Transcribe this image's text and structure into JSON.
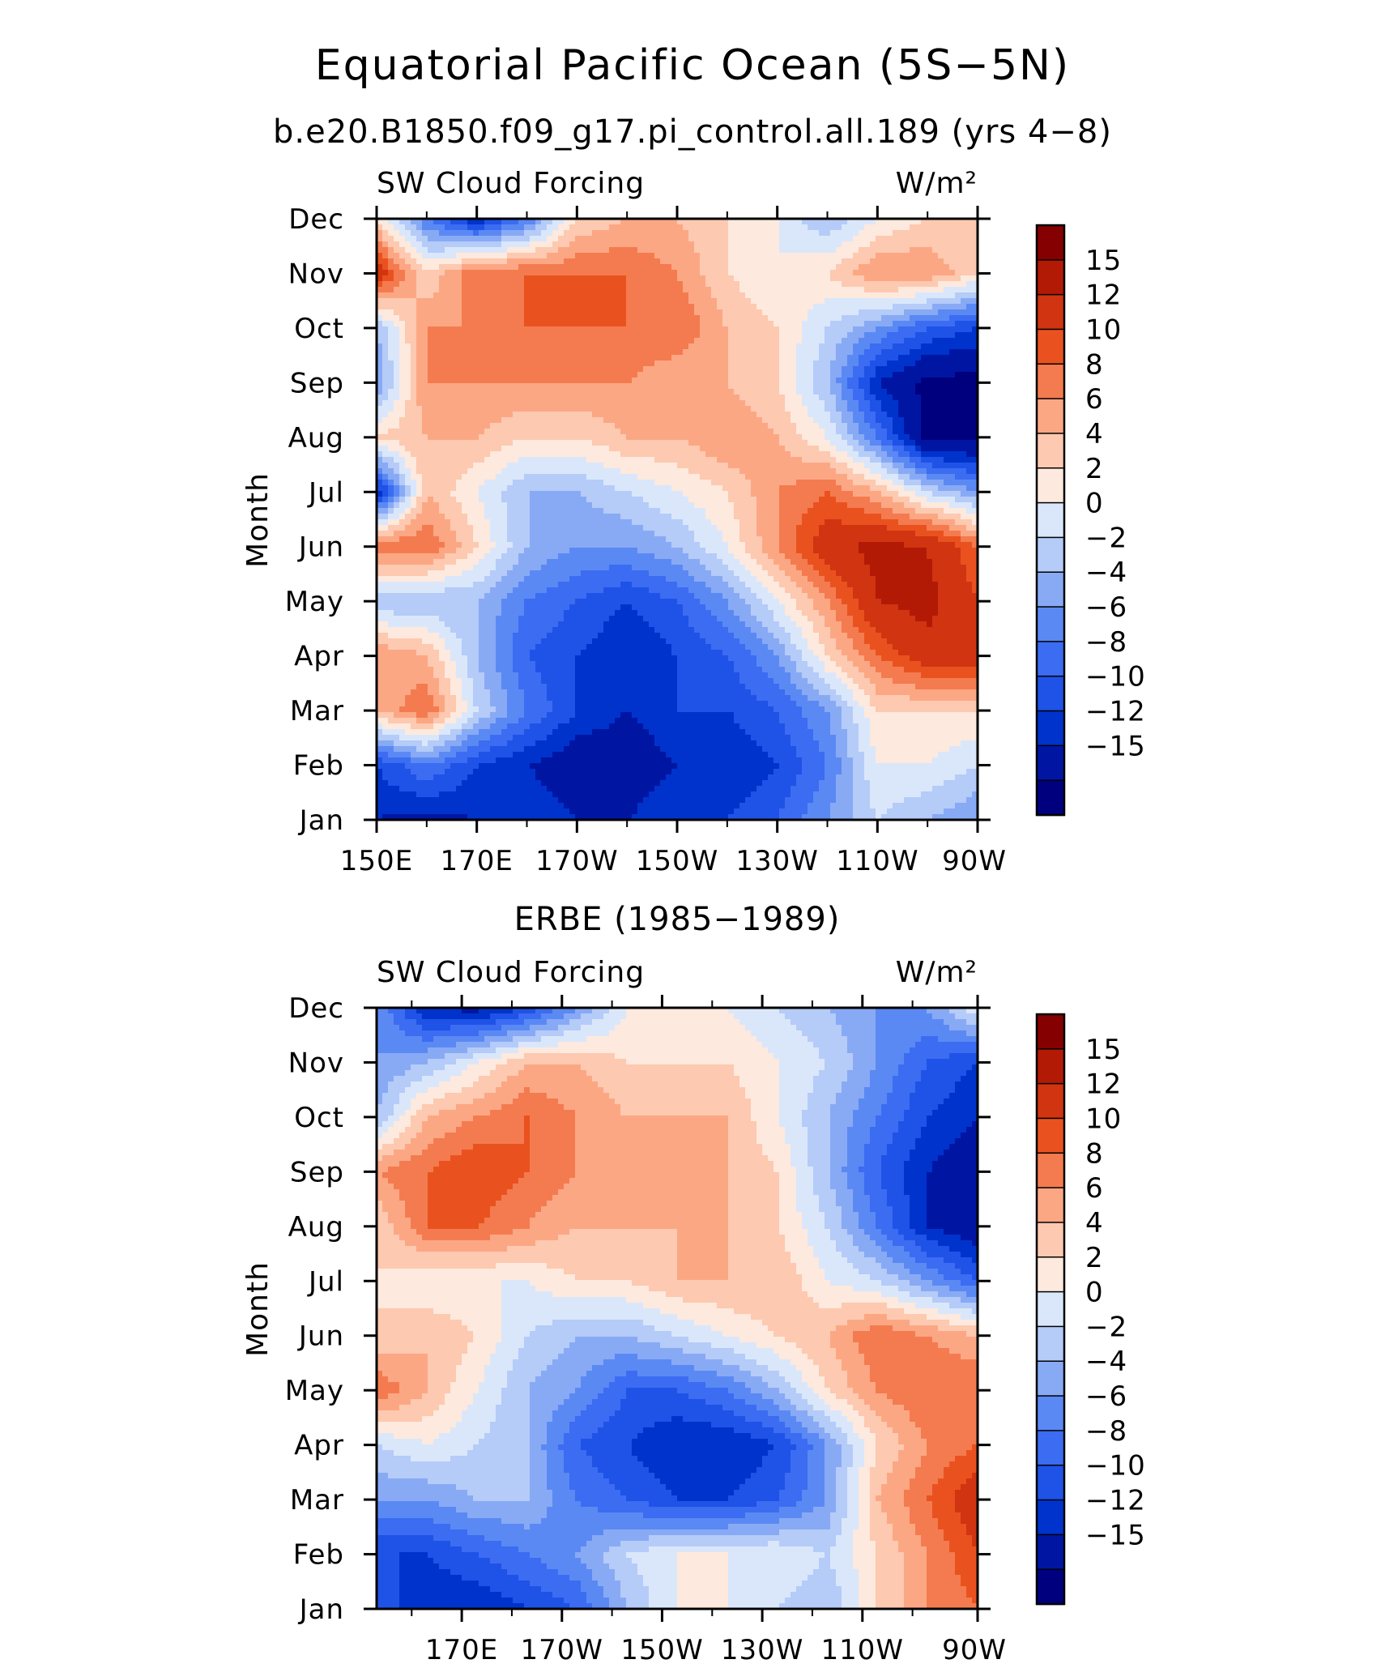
{
  "figure": {
    "title": "Equatorial Pacific Ocean (5S−5N)",
    "subtitle": "b.e20.B1850.f09_g17.pi_control.all.189 (yrs 4−8)"
  },
  "chart_data": [
    {
      "type": "heatmap",
      "panel_title": "",
      "left_label": "SW Cloud Forcing",
      "right_label": "W/m²",
      "ylabel": "Month",
      "xlabel": "",
      "x_ticks": [
        "150E",
        "170E",
        "170W",
        "150W",
        "130W",
        "110W",
        "90W"
      ],
      "y_ticks": [
        "Jan",
        "Feb",
        "Mar",
        "Apr",
        "May",
        "Jun",
        "Jul",
        "Aug",
        "Sep",
        "Oct",
        "Nov",
        "Dec"
      ],
      "x": [
        150,
        160,
        170,
        180,
        190,
        200,
        210,
        220,
        230,
        240,
        250,
        260,
        270
      ],
      "z": [
        [
          -12,
          -13,
          -12,
          -10,
          -12,
          -12,
          -10,
          -10,
          -8,
          -4,
          0,
          -2,
          -4
        ],
        [
          -10,
          -6,
          -10,
          -12,
          -14,
          -14,
          -12,
          -12,
          -10,
          -6,
          2,
          2,
          0
        ],
        [
          6,
          10,
          0,
          -6,
          -10,
          -12,
          -10,
          -10,
          -8,
          -4,
          4,
          4,
          4
        ],
        [
          8,
          6,
          -2,
          -8,
          -10,
          -12,
          -10,
          -8,
          -4,
          4,
          10,
          14,
          14
        ],
        [
          -2,
          -2,
          -2,
          -6,
          -8,
          -10,
          -8,
          -4,
          2,
          8,
          15,
          16,
          12
        ],
        [
          10,
          10,
          4,
          -2,
          -4,
          -4,
          -2,
          2,
          8,
          14,
          16,
          15,
          10
        ],
        [
          -12,
          6,
          2,
          -2,
          -2,
          0,
          2,
          4,
          8,
          10,
          6,
          0,
          -4
        ],
        [
          4,
          6,
          6,
          4,
          4,
          6,
          6,
          8,
          6,
          2,
          -6,
          -16,
          -16
        ],
        [
          -4,
          8,
          8,
          8,
          8,
          8,
          6,
          6,
          4,
          -2,
          -12,
          -16,
          -16
        ],
        [
          -2,
          8,
          8,
          10,
          10,
          10,
          10,
          6,
          4,
          0,
          -4,
          -8,
          -10
        ],
        [
          14,
          4,
          10,
          10,
          10,
          10,
          8,
          4,
          2,
          4,
          8,
          8,
          4
        ],
        [
          4,
          -6,
          -12,
          -6,
          4,
          6,
          6,
          4,
          2,
          -2,
          2,
          4,
          4
        ]
      ]
    },
    {
      "type": "heatmap",
      "panel_title": "ERBE (1985−1989)",
      "left_label": "SW Cloud Forcing",
      "right_label": "W/m²",
      "ylabel": "Month",
      "xlabel": "",
      "x_ticks": [
        "170E",
        "170W",
        "150W",
        "130W",
        "110W",
        "90W"
      ],
      "y_ticks": [
        "Jan",
        "Feb",
        "Mar",
        "Apr",
        "May",
        "Jun",
        "Jul",
        "Aug",
        "Sep",
        "Oct",
        "Nov",
        "Dec"
      ],
      "x": [
        150,
        160,
        170,
        180,
        190,
        200,
        210,
        220,
        230,
        240,
        250,
        260,
        270
      ],
      "z": [
        [
          -8,
          -12,
          -12,
          -10,
          -8,
          -2,
          2,
          2,
          0,
          -2,
          4,
          8,
          10
        ],
        [
          -10,
          -10,
          -8,
          -6,
          -4,
          0,
          2,
          2,
          2,
          0,
          4,
          8,
          12
        ],
        [
          -4,
          -4,
          -2,
          -2,
          -6,
          -8,
          -10,
          -10,
          -8,
          -4,
          6,
          10,
          14
        ],
        [
          0,
          2,
          0,
          -2,
          -8,
          -10,
          -12,
          -12,
          -10,
          -4,
          4,
          8,
          10
        ],
        [
          10,
          6,
          2,
          -2,
          -4,
          -8,
          -8,
          -6,
          -2,
          4,
          8,
          10,
          10
        ],
        [
          4,
          6,
          4,
          0,
          -2,
          -2,
          0,
          2,
          4,
          6,
          10,
          8,
          6
        ],
        [
          4,
          2,
          2,
          2,
          4,
          4,
          6,
          6,
          6,
          2,
          0,
          -4,
          -8
        ],
        [
          4,
          10,
          10,
          8,
          6,
          6,
          6,
          6,
          4,
          0,
          -6,
          -12,
          -14
        ],
        [
          8,
          10,
          12,
          10,
          8,
          8,
          6,
          6,
          4,
          -2,
          -8,
          -12,
          -14
        ],
        [
          -2,
          6,
          8,
          10,
          8,
          6,
          6,
          6,
          2,
          -2,
          -6,
          -10,
          -12
        ],
        [
          -4,
          -2,
          2,
          6,
          6,
          4,
          4,
          4,
          2,
          0,
          -4,
          -8,
          -10
        ],
        [
          -4,
          -12,
          -13,
          -10,
          -4,
          2,
          2,
          2,
          0,
          -2,
          -4,
          -4,
          2
        ]
      ]
    }
  ],
  "colorbar": {
    "labels": [
      "15",
      "12",
      "10",
      "8",
      "6",
      "4",
      "2",
      "0",
      "−2",
      "−4",
      "−6",
      "−8",
      "−10",
      "−12",
      "−15"
    ],
    "levels": [
      -15,
      -12,
      -10,
      -8,
      -6,
      -4,
      -2,
      0,
      2,
      4,
      6,
      8,
      10,
      12,
      15
    ],
    "colors": [
      "#00007f",
      "#0016a3",
      "#0033cc",
      "#1f52e6",
      "#3b6cf2",
      "#5b89f4",
      "#88aaf5",
      "#b5cbf8",
      "#dae7fb",
      "#fde9dd",
      "#fdc9b0",
      "#fca784",
      "#f47b4f",
      "#e9521f",
      "#d13410",
      "#b21a06",
      "#850000"
    ]
  }
}
